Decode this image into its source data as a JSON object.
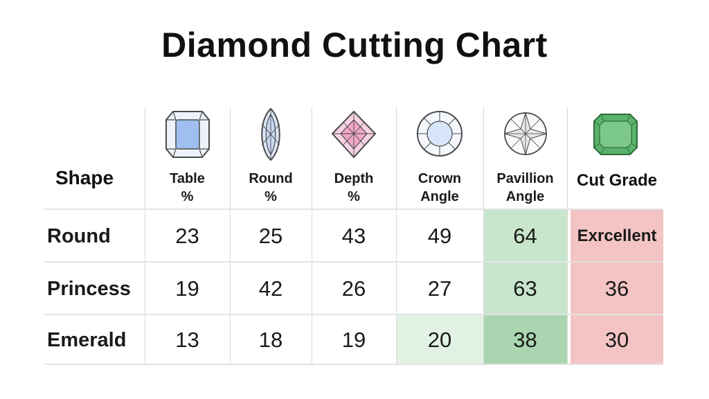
{
  "title": "Diamond Cutting Chart",
  "table": {
    "shape_header": "Shape",
    "columns": [
      {
        "label": "Table\n%",
        "icon": "cushion-diamond-icon",
        "color": "#9fbff0"
      },
      {
        "label": "Round\n%",
        "icon": "marquise-diamond-icon",
        "color": "#c8d8f2"
      },
      {
        "label": "Depth\n%",
        "icon": "princess-diamond-icon",
        "color": "#f0a6c8"
      },
      {
        "label": "Crown\nAngle",
        "icon": "round-diamond-icon",
        "color": "#d7e6fa"
      },
      {
        "label": "Pavillion\nAngle",
        "icon": "brilliant-diamond-icon",
        "color": "#e6e6e6"
      },
      {
        "label": "Cut Grade",
        "icon": "emerald-diamond-icon",
        "color": "#59b36b"
      }
    ],
    "rows": [
      {
        "shape": "Round",
        "values": [
          "23",
          "25",
          "43",
          "49",
          "64",
          "Exrcellent"
        ]
      },
      {
        "shape": "Princess",
        "values": [
          "19",
          "42",
          "26",
          "27",
          "63",
          "36"
        ]
      },
      {
        "shape": "Emerald",
        "values": [
          "13",
          "18",
          "19",
          "20",
          "38",
          "30"
        ]
      }
    ],
    "colors": {
      "highlight_light_green": "#e1f1e3",
      "highlight_green": "#c7e6cc",
      "highlight_dark_green": "#a9d6b0",
      "highlight_red": "#f4c4c4"
    }
  }
}
